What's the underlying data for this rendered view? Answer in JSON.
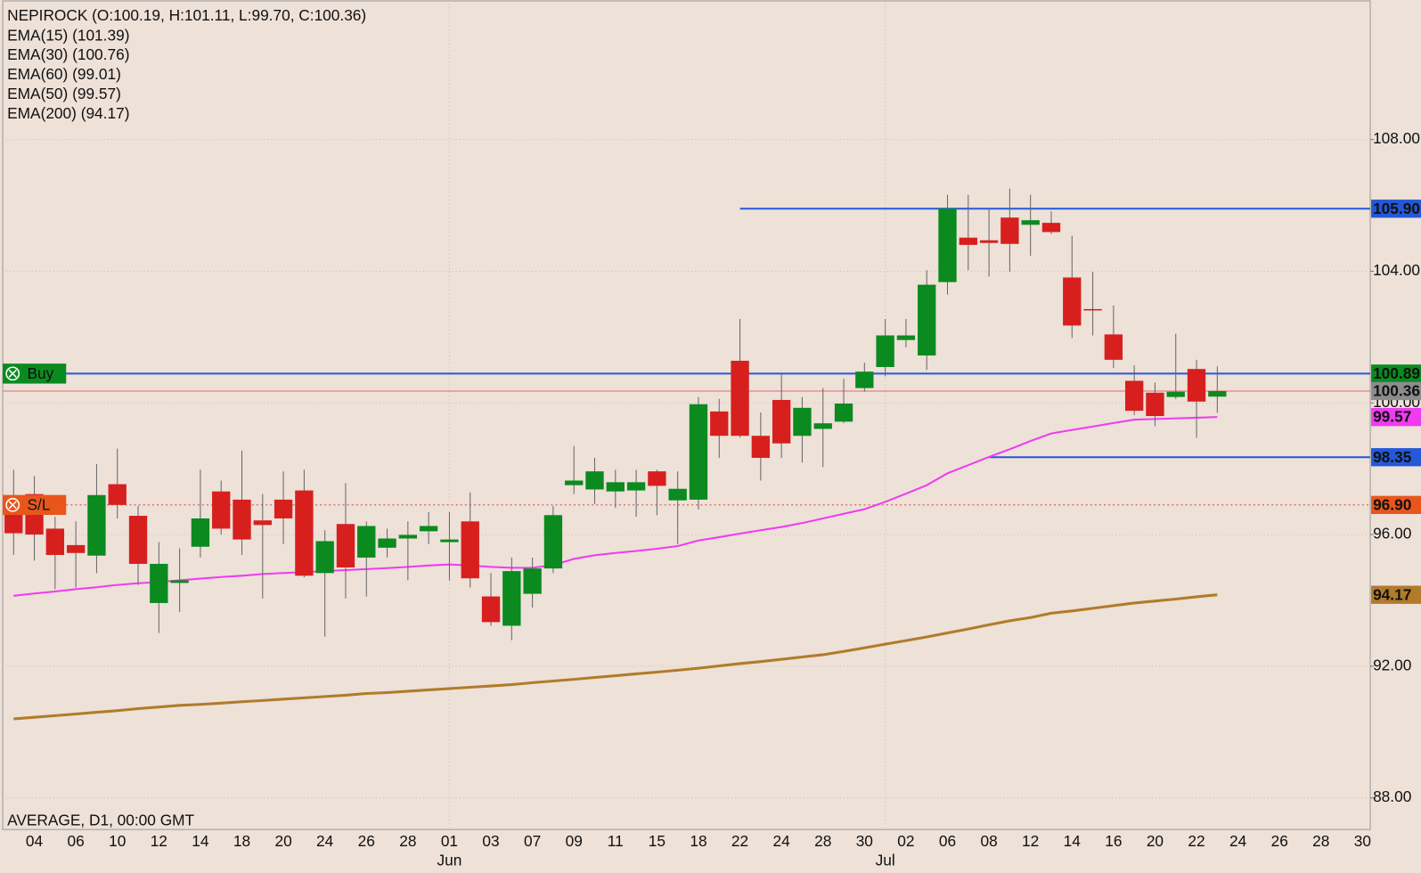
{
  "chart_data": {
    "type": "candlestick",
    "title": "NEPIROCK (O:100.19, H:101.11, L:99.70, C:100.36)",
    "indicators": [
      "EMA(15) (101.39)",
      "EMA(30) (100.76)",
      "EMA(60) (99.01)",
      "EMA(50) (99.57)",
      "EMA(200) (94.17)"
    ],
    "footer": "AVERAGE, D1, 00:00 GMT",
    "categories": [
      null,
      "04",
      null,
      "06",
      null,
      "10",
      null,
      "12",
      null,
      "14",
      null,
      "18",
      null,
      "20",
      null,
      "24",
      null,
      "26",
      null,
      "28",
      null,
      "01",
      null,
      "03",
      null,
      "07",
      null,
      "09",
      null,
      "11",
      null,
      "15",
      null,
      "18",
      null,
      "22",
      null,
      "24",
      null,
      "28",
      null,
      "30",
      null,
      "02",
      null,
      "06",
      null,
      "08",
      null,
      "12",
      null,
      "14",
      null,
      "16",
      null,
      "20",
      null,
      "22",
      null,
      "24",
      null,
      "26",
      null,
      "28",
      null,
      "30"
    ],
    "months": [
      {
        "label": "Jun",
        "index": 21
      },
      {
        "label": "Jul",
        "index": 42
      }
    ],
    "open": [
      97.14,
      97.23,
      96.18,
      95.68,
      95.36,
      97.53,
      96.57,
      93.92,
      94.53,
      95.63,
      97.31,
      97.06,
      96.43,
      97.06,
      97.34,
      94.83,
      96.32,
      95.3,
      95.6,
      95.88,
      96.1,
      95.77,
      96.4,
      94.12,
      93.23,
      94.2,
      94.97,
      97.5,
      97.37,
      97.31,
      97.34,
      97.92,
      97.04,
      97.06,
      99.74,
      101.28,
      99.0,
      100.09,
      99.0,
      99.21,
      99.43,
      100.45,
      101.09,
      101.91,
      101.44,
      103.67,
      105.02,
      104.94,
      105.63,
      105.41,
      105.47,
      103.81,
      102.85,
      102.08,
      100.67,
      100.31,
      100.18,
      101.03,
      100.19,
      null,
      null,
      null,
      null,
      null,
      null,
      null
    ],
    "high": [
      97.97,
      97.78,
      96.54,
      96.4,
      98.14,
      98.61,
      96.87,
      95.77,
      95.58,
      97.97,
      97.64,
      98.55,
      97.23,
      97.92,
      97.97,
      96.13,
      97.56,
      96.4,
      96.18,
      96.4,
      96.68,
      96.68,
      97.28,
      94.83,
      95.3,
      95.3,
      96.87,
      98.69,
      98.33,
      97.97,
      97.97,
      97.97,
      97.92,
      100.18,
      100.12,
      102.55,
      99.71,
      100.86,
      100.18,
      100.45,
      100.73,
      101.22,
      102.55,
      102.55,
      104.03,
      106.32,
      106.32,
      105.91,
      106.51,
      106.32,
      105.82,
      105.08,
      103.98,
      102.96,
      101.14,
      100.62,
      102.1,
      101.31,
      101.11,
      null,
      null,
      null,
      null,
      null,
      null,
      null
    ],
    "low": [
      95.38,
      95.21,
      94.34,
      94.39,
      94.83,
      96.49,
      94.47,
      93.01,
      93.65,
      95.3,
      96.0,
      95.38,
      94.06,
      95.71,
      94.7,
      92.9,
      94.06,
      94.12,
      95.3,
      94.61,
      95.71,
      94.61,
      94.39,
      93.23,
      92.79,
      93.78,
      94.83,
      97.23,
      96.93,
      96.81,
      96.54,
      96.59,
      95.71,
      96.76,
      98.33,
      98.95,
      97.64,
      98.33,
      98.19,
      98.05,
      99.38,
      100.34,
      100.81,
      101.69,
      101.0,
      103.29,
      104.03,
      103.84,
      103.98,
      104.47,
      105.13,
      101.97,
      102.05,
      101.06,
      99.63,
      99.29,
      100.12,
      98.94,
      99.7,
      null,
      null,
      null,
      null,
      null,
      null,
      null
    ],
    "close": [
      96.04,
      96.0,
      95.38,
      95.44,
      97.2,
      96.9,
      95.11,
      95.11,
      94.61,
      96.49,
      96.18,
      95.85,
      96.29,
      96.49,
      94.75,
      95.8,
      95.0,
      96.26,
      95.88,
      95.99,
      96.26,
      95.85,
      94.67,
      93.34,
      94.89,
      94.97,
      96.59,
      97.64,
      97.92,
      97.59,
      97.59,
      97.48,
      97.39,
      99.96,
      99.0,
      99.0,
      98.33,
      98.77,
      99.85,
      99.38,
      99.98,
      100.95,
      102.05,
      102.05,
      103.59,
      105.9,
      104.8,
      104.86,
      104.83,
      105.55,
      105.19,
      102.35,
      102.82,
      101.31,
      99.76,
      99.6,
      100.34,
      100.04,
      100.36,
      null,
      null,
      null,
      null,
      null,
      null,
      null
    ],
    "up_color": "#0b8a1f",
    "down_color": "#d7201e",
    "series": [
      {
        "color": "#f03cf0",
        "last_label": "99.57",
        "values": [
          94.14,
          94.21,
          94.27,
          94.34,
          94.4,
          94.47,
          94.52,
          94.56,
          94.61,
          94.66,
          94.71,
          94.75,
          94.8,
          94.83,
          94.86,
          94.89,
          94.92,
          94.95,
          94.98,
          95.02,
          95.06,
          95.09,
          95.06,
          95.02,
          94.99,
          94.99,
          95.07,
          95.26,
          95.37,
          95.44,
          95.5,
          95.57,
          95.65,
          95.82,
          95.92,
          96.03,
          96.13,
          96.23,
          96.35,
          96.49,
          96.63,
          96.77,
          96.99,
          97.24,
          97.5,
          97.86,
          98.11,
          98.36,
          98.59,
          98.84,
          99.07,
          99.18,
          99.28,
          99.39,
          99.49,
          99.51,
          99.53,
          99.55,
          99.57,
          null,
          null,
          null,
          null,
          null,
          null,
          null
        ]
      },
      {
        "color": "#b27b2a",
        "last_label": "94.17",
        "values": [
          90.4,
          90.45,
          90.5,
          90.55,
          90.6,
          90.65,
          90.71,
          90.76,
          90.81,
          90.84,
          90.88,
          90.92,
          90.96,
          91.0,
          91.04,
          91.08,
          91.12,
          91.17,
          91.2,
          91.24,
          91.28,
          91.32,
          91.36,
          91.4,
          91.44,
          91.5,
          91.55,
          91.6,
          91.66,
          91.71,
          91.77,
          91.82,
          91.88,
          91.94,
          92.01,
          92.08,
          92.14,
          92.21,
          92.28,
          92.35,
          92.45,
          92.56,
          92.67,
          92.78,
          92.89,
          93.01,
          93.13,
          93.26,
          93.38,
          93.48,
          93.61,
          93.68,
          93.76,
          93.84,
          93.92,
          93.98,
          94.04,
          94.11,
          94.17,
          null,
          null,
          null,
          null,
          null,
          null,
          null
        ]
      }
    ],
    "ylim": [
      87.04,
      112.24
    ],
    "yticks": [
      {
        "value": 88,
        "label": "88.00"
      },
      {
        "value": 92,
        "label": "92.00"
      },
      {
        "value": 96,
        "label": "96.00"
      },
      {
        "value": 100,
        "label": "100.00"
      },
      {
        "value": 104,
        "label": "104.00"
      },
      {
        "value": 108,
        "label": "108.00"
      }
    ],
    "levels": [
      {
        "value": 105.9,
        "label": "105.90",
        "color": "#2458d8",
        "label_color": "#2458d8",
        "style": "solid",
        "from": 35
      },
      {
        "value": 100.89,
        "label": "100.89",
        "color": "#2458d8",
        "label_color": "#0b8a1f",
        "style": "solid",
        "from": 0,
        "button": "Buy"
      },
      {
        "value": 100.36,
        "label": "100.36",
        "color": "#e86a6a",
        "label_color": "#8c8c8c",
        "style": "thin",
        "from": 0
      },
      {
        "value": 98.35,
        "label": "98.35",
        "color": "#2458d8",
        "label_color": "#2458d8",
        "style": "solid",
        "from": 47
      },
      {
        "value": 96.9,
        "label": "96.90",
        "color": "#e05050",
        "label_color": "#e8561c",
        "style": "dotted",
        "from": 0,
        "button": "S/L"
      }
    ]
  }
}
